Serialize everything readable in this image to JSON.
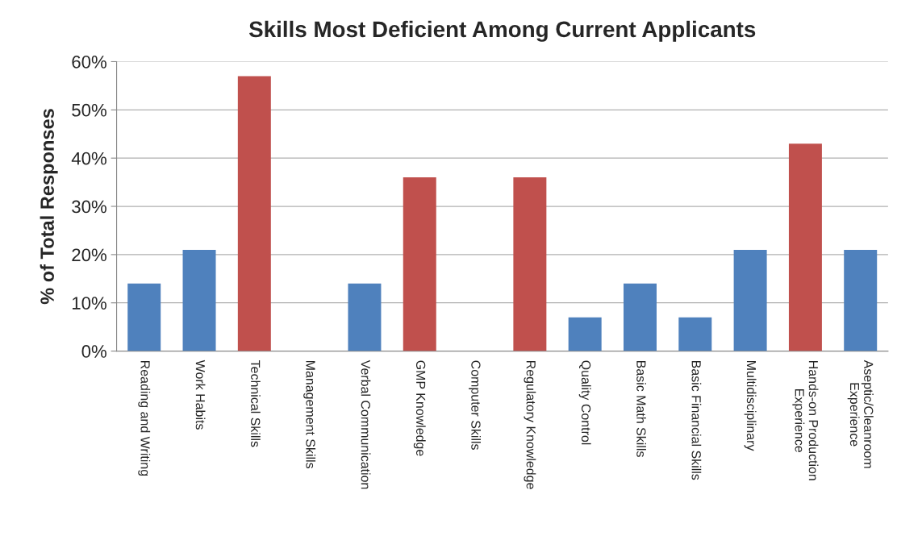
{
  "chart_data": {
    "type": "bar",
    "title": "Skills Most Deficient Among Current Applicants",
    "ylabel": "% of Total Responses",
    "categories": [
      "Reading and Writing",
      "Work Habits",
      "Technical Skills",
      "Management Skills",
      "Verbal Communication",
      "GMP Knowledge",
      "Computer Skills",
      "Regulatory Knowledge",
      "Quality Control",
      "Basic Math Skills",
      "Basic Financial Skills",
      "Multidisciplinary",
      "Hands-on Production\nExperience",
      "Aseptic/Cleanroom\nExperience"
    ],
    "values": [
      14,
      21,
      57,
      0,
      14,
      36,
      0,
      36,
      7,
      14,
      7,
      21,
      43,
      21
    ],
    "colors": [
      "#4f81bd",
      "#4f81bd",
      "#c0504d",
      "#4f81bd",
      "#4f81bd",
      "#c0504d",
      "#4f81bd",
      "#c0504d",
      "#4f81bd",
      "#4f81bd",
      "#4f81bd",
      "#4f81bd",
      "#c0504d",
      "#4f81bd"
    ],
    "ylim": [
      0,
      60
    ],
    "yticks": [
      {
        "value": 0,
        "label": "0%"
      },
      {
        "value": 10,
        "label": "10%"
      },
      {
        "value": 20,
        "label": "20%"
      },
      {
        "value": 30,
        "label": "30%"
      },
      {
        "value": 40,
        "label": "40%"
      },
      {
        "value": 50,
        "label": "50%"
      },
      {
        "value": 60,
        "label": "60%"
      }
    ],
    "grid": "y"
  }
}
